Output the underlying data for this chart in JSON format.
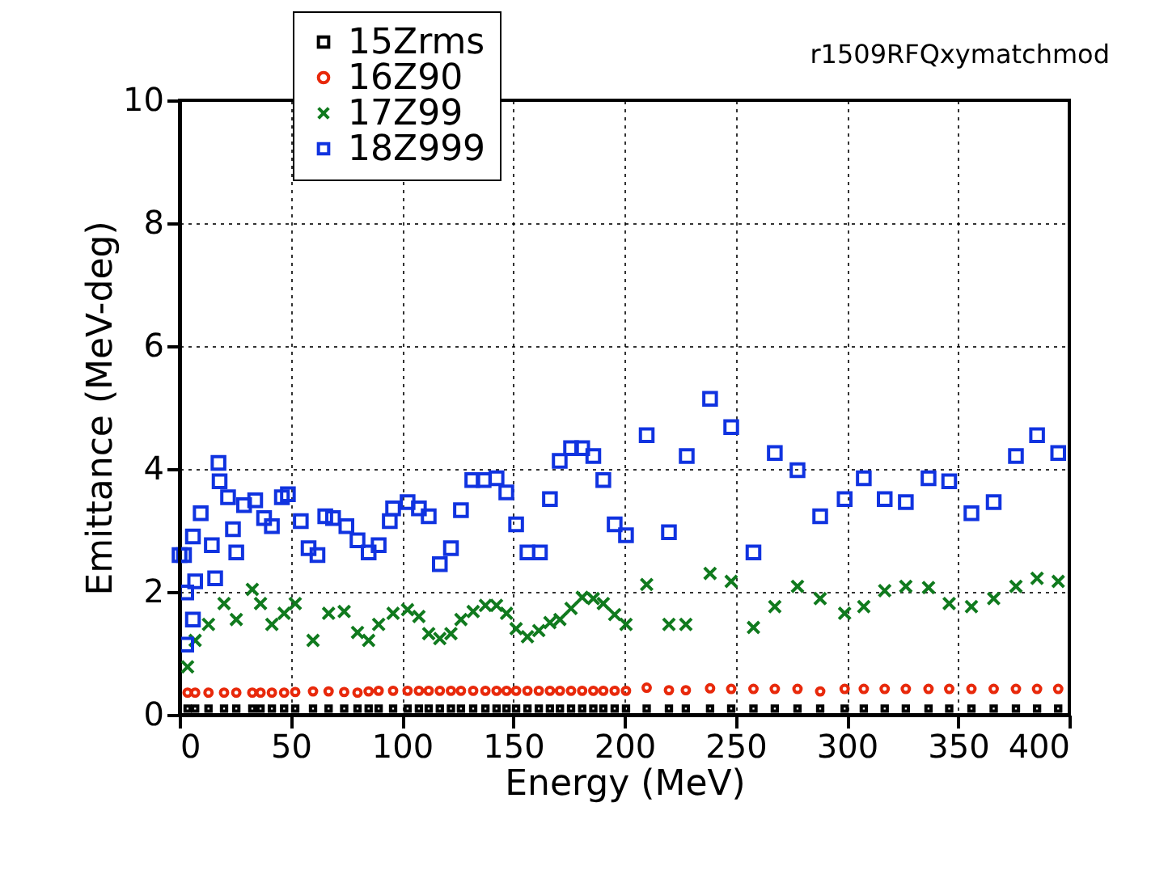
{
  "chart_data": {
    "type": "scatter",
    "xlabel": "Energy (MeV)",
    "ylabel": "Emittance (MeV-deg)",
    "annotations": [
      "r1509RFQxymatchmod"
    ],
    "xlim": [
      0,
      400
    ],
    "xticks": [
      0,
      50,
      100,
      150,
      200,
      250,
      300,
      350,
      400
    ],
    "ylim": [
      0,
      10
    ],
    "yticks": [
      0,
      2,
      4,
      6,
      8,
      10
    ],
    "grid": true,
    "legend": "top left",
    "series": [
      {
        "name": "15Zrms",
        "color": "#000000",
        "marker": "square",
        "x": [
          3.6,
          7,
          13,
          20,
          25.5,
          32.7,
          36.4,
          41.5,
          47,
          52,
          60,
          67,
          74,
          80,
          85,
          89.5,
          96,
          102.5,
          107.6,
          112,
          117,
          122,
          126.5,
          132,
          137.5,
          142.5,
          147,
          151.3,
          156.4,
          161.5,
          166.5,
          171,
          176,
          181,
          186,
          190.5,
          195.6,
          200.7,
          210,
          220,
          227.6,
          238.5,
          248,
          258,
          267.6,
          277.8,
          288,
          299,
          307.6,
          317,
          326.5,
          336.7,
          346,
          356,
          366,
          376,
          385.5,
          395
        ],
        "values": [
          0.1,
          0.1,
          0.1,
          0.1,
          0.1,
          0.1,
          0.1,
          0.1,
          0.1,
          0.1,
          0.1,
          0.1,
          0.1,
          0.1,
          0.1,
          0.1,
          0.1,
          0.1,
          0.1,
          0.1,
          0.1,
          0.1,
          0.1,
          0.1,
          0.1,
          0.1,
          0.1,
          0.1,
          0.1,
          0.1,
          0.1,
          0.1,
          0.1,
          0.1,
          0.1,
          0.1,
          0.1,
          0.1,
          0.1,
          0.1,
          0.1,
          0.1,
          0.1,
          0.1,
          0.1,
          0.1,
          0.1,
          0.1,
          0.1,
          0.1,
          0.1,
          0.1,
          0.1,
          0.1,
          0.1,
          0.1,
          0.1,
          0.1
        ]
      },
      {
        "name": "16Z90",
        "color": "#e8290b",
        "marker": "circle",
        "x": [
          3.6,
          7,
          13,
          20,
          25.5,
          32.7,
          36.4,
          41.5,
          47,
          52,
          60,
          67,
          74,
          80,
          85,
          89.5,
          96,
          102.5,
          107.6,
          112,
          117,
          122,
          126.5,
          132,
          137.5,
          142.5,
          147,
          151.3,
          156.4,
          161.5,
          166.5,
          171,
          176,
          181,
          186,
          190.5,
          195.6,
          200.7,
          210,
          220,
          227.6,
          238.5,
          248,
          258,
          267.6,
          277.8,
          288,
          299,
          307.6,
          317,
          326.5,
          336.7,
          346,
          356,
          366,
          376,
          385.5,
          395
        ],
        "values": [
          0.36,
          0.36,
          0.36,
          0.36,
          0.36,
          0.36,
          0.36,
          0.36,
          0.36,
          0.37,
          0.38,
          0.38,
          0.37,
          0.36,
          0.38,
          0.39,
          0.39,
          0.39,
          0.39,
          0.39,
          0.39,
          0.39,
          0.39,
          0.39,
          0.39,
          0.39,
          0.39,
          0.39,
          0.39,
          0.39,
          0.39,
          0.39,
          0.39,
          0.39,
          0.39,
          0.39,
          0.39,
          0.39,
          0.44,
          0.4,
          0.4,
          0.43,
          0.42,
          0.42,
          0.42,
          0.42,
          0.38,
          0.42,
          0.42,
          0.42,
          0.42,
          0.42,
          0.42,
          0.42,
          0.42,
          0.42,
          0.42,
          0.42
        ]
      },
      {
        "name": "17Z99",
        "color": "#107a1e",
        "marker": "cross",
        "x": [
          3.6,
          7,
          13,
          20,
          25.5,
          32.7,
          36.4,
          41.5,
          47,
          52,
          60,
          67,
          74,
          80,
          85,
          89.5,
          96,
          102.5,
          107.6,
          112,
          117,
          122,
          126.5,
          132,
          137.5,
          142.5,
          147,
          151.3,
          156.4,
          161.5,
          166.5,
          171,
          176,
          181,
          186,
          190.5,
          195.6,
          200.7,
          210,
          220,
          227.6,
          238.5,
          248,
          258,
          267.6,
          277.8,
          288,
          299,
          307.6,
          317,
          326.5,
          336.7,
          346,
          356,
          366,
          376,
          385.5,
          395
        ],
        "values": [
          0.78,
          1.21,
          1.47,
          1.81,
          1.55,
          2.04,
          1.81,
          1.47,
          1.65,
          1.81,
          1.21,
          1.65,
          1.68,
          1.34,
          1.21,
          1.47,
          1.65,
          1.71,
          1.6,
          1.32,
          1.24,
          1.32,
          1.55,
          1.68,
          1.78,
          1.78,
          1.65,
          1.4,
          1.27,
          1.37,
          1.5,
          1.55,
          1.73,
          1.91,
          1.89,
          1.81,
          1.63,
          1.47,
          2.12,
          1.47,
          1.47,
          2.3,
          2.17,
          1.42,
          1.76,
          2.09,
          1.89,
          1.65,
          1.76,
          2.02,
          2.09,
          2.07,
          1.81,
          1.76,
          1.89,
          2.09,
          2.22,
          2.17
        ]
      },
      {
        "name": "18Z999",
        "color": "#1033e0",
        "marker": "square",
        "x": [
          0,
          2,
          3,
          3,
          6,
          6,
          7,
          9.5,
          14.5,
          16,
          17.5,
          18,
          21.8,
          24,
          25.5,
          29,
          34,
          38,
          41.5,
          46,
          48.7,
          54.5,
          58,
          62,
          65.5,
          69,
          75,
          80,
          85,
          89.5,
          94.5,
          96,
          102.5,
          107.6,
          112,
          117,
          122,
          126.5,
          131.6,
          136.7,
          142.5,
          146.9,
          151.3,
          156.4,
          162,
          166.5,
          170.9,
          176,
          181,
          186,
          190.5,
          195.6,
          200.7,
          210,
          220,
          228,
          238.5,
          248,
          258,
          267.6,
          277.8,
          288,
          299,
          307.6,
          317,
          326.5,
          336.7,
          346,
          356,
          366,
          376,
          385.5,
          395
        ],
        "values": [
          2.6,
          2.6,
          1.14,
          1.99,
          1.55,
          2.9,
          2.17,
          3.28,
          2.76,
          2.22,
          4.1,
          3.8,
          3.54,
          3.02,
          2.64,
          3.41,
          3.49,
          3.2,
          3.07,
          3.54,
          3.59,
          3.15,
          2.71,
          2.6,
          3.23,
          3.2,
          3.07,
          2.84,
          2.64,
          2.76,
          3.15,
          3.36,
          3.46,
          3.36,
          3.23,
          2.45,
          2.71,
          3.33,
          3.82,
          3.82,
          3.85,
          3.62,
          3.1,
          2.64,
          2.64,
          3.51,
          4.13,
          4.34,
          4.34,
          4.21,
          3.82,
          3.1,
          2.92,
          4.55,
          2.97,
          4.21,
          5.14,
          4.68,
          2.64,
          4.26,
          3.98,
          3.23,
          3.51,
          3.85,
          3.51,
          3.46,
          3.85,
          3.8,
          3.28,
          3.46,
          4.21,
          4.55,
          4.26
        ]
      }
    ]
  }
}
